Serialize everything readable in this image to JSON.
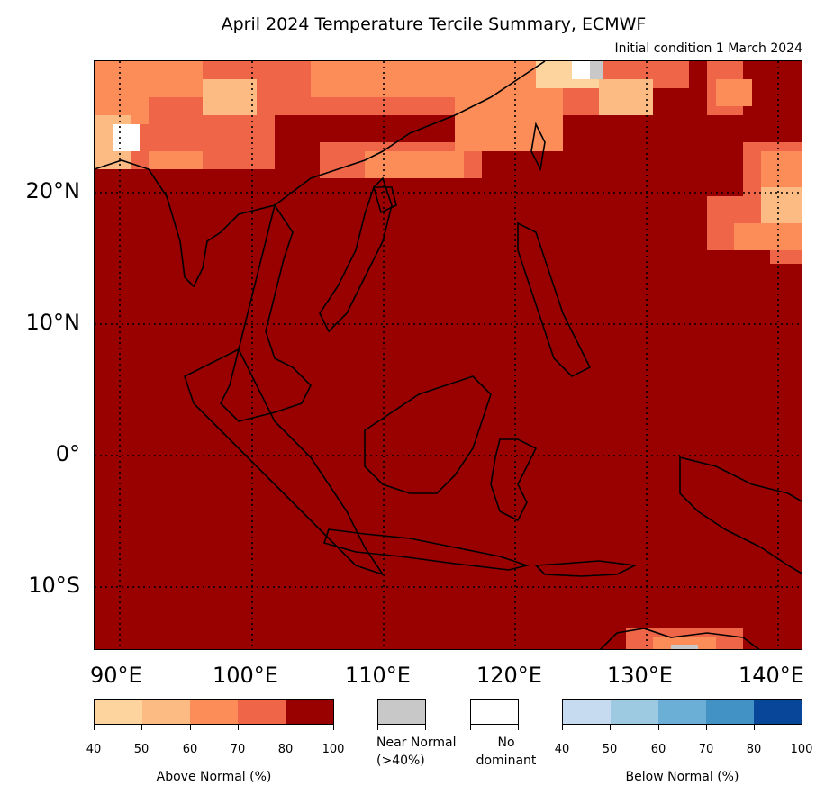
{
  "title": "April 2024 Temperature Tercile Summary, ECMWF",
  "subtitle": "Initial condition 1 March 2024",
  "lat_labels": [
    "20°N",
    "10°N",
    "0°",
    "10°S"
  ],
  "lon_labels": [
    "90°E",
    "100°E",
    "110°E",
    "120°E",
    "130°E",
    "140°E"
  ],
  "legend": {
    "above_label": "Above Normal (%)",
    "above_ticks": [
      "40",
      "50",
      "60",
      "70",
      "80",
      "100"
    ],
    "above_colors": [
      "#fdd49e",
      "#fdbb84",
      "#fc8d59",
      "#ef6548",
      "#990000"
    ],
    "near_label_1": "Near Normal",
    "near_label_2": "(>40%)",
    "near_color": "#c8c8c8",
    "none_label_1": "No",
    "none_label_2": "dominant",
    "none_color": "#ffffff",
    "below_label": "Below Normal (%)",
    "below_ticks": [
      "40",
      "50",
      "60",
      "70",
      "80",
      "100"
    ],
    "below_colors": [
      "#c6dbef",
      "#9ecae1",
      "#6baed6",
      "#4292c6",
      "#08469a"
    ]
  },
  "map_colors": {
    "dominant": "#990000",
    "coast": "#000000"
  }
}
